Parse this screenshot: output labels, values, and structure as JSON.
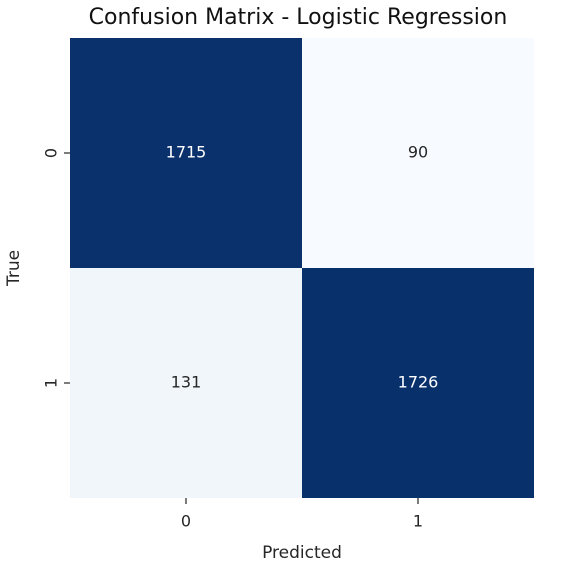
{
  "chart_data": {
    "type": "heatmap",
    "title": "Confusion Matrix - Logistic Regression",
    "x_label": "Predicted",
    "y_label": "True",
    "x_categories": [
      "0",
      "1"
    ],
    "y_categories": [
      "0",
      "1"
    ],
    "values": [
      [
        1715,
        90
      ],
      [
        131,
        1726
      ]
    ],
    "colormap": [
      "#f7fbff",
      "#08306b"
    ]
  }
}
